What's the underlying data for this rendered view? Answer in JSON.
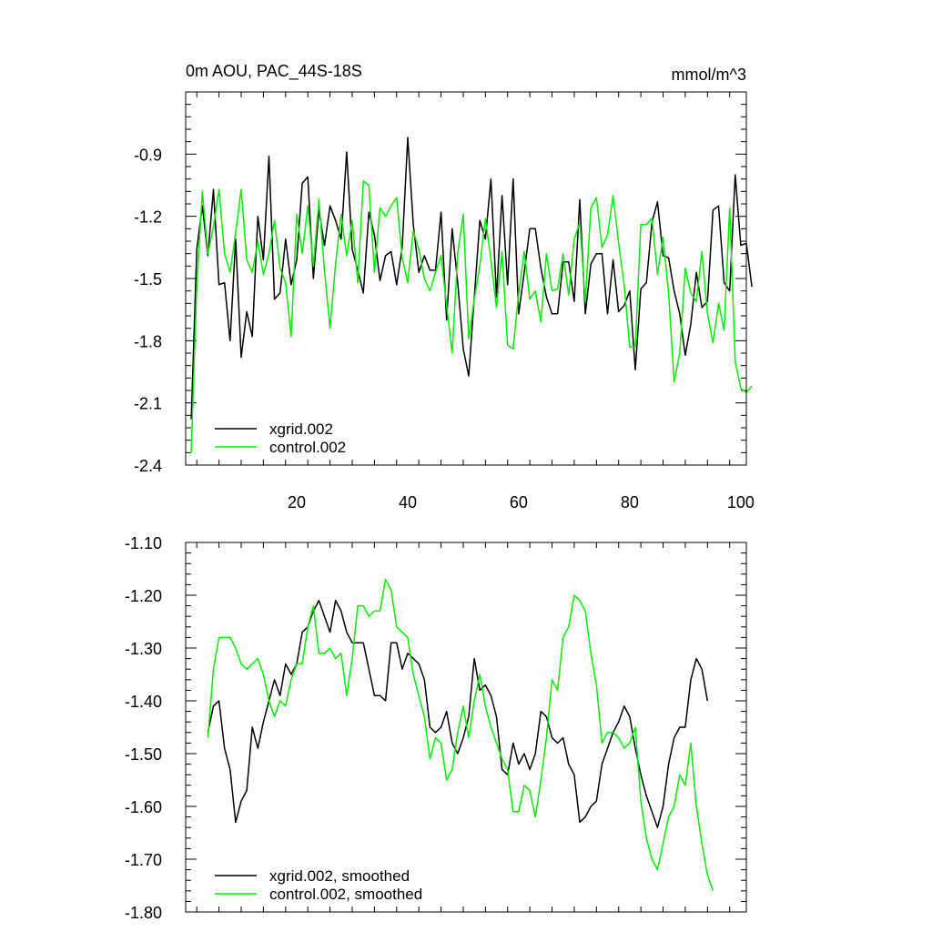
{
  "colors": {
    "series_a": "#000000",
    "series_b": "#00ee00",
    "axis": "#000000"
  },
  "chart_data": [
    {
      "type": "line",
      "title": "0m AOU, PAC_44S-18S",
      "units": "mmol/m^3",
      "xlabel": "",
      "ylabel": "",
      "xlim": [
        0,
        101
      ],
      "ylim": [
        -2.4,
        -0.6
      ],
      "x_ticks": [
        20,
        40,
        60,
        80,
        100
      ],
      "y_ticks": [
        -2.4,
        -2.1,
        -1.8,
        -1.5,
        -1.2,
        -0.9
      ],
      "y_tick_labels": [
        "-2.4",
        "-2.1",
        "-1.8",
        "-1.5",
        "-1.2",
        "-0.9"
      ],
      "legend_position": "bottom-left",
      "x_start": 1,
      "series": [
        {
          "name": "xgrid.002",
          "color": "#000000",
          "values": [
            -2.18,
            -1.36,
            -1.15,
            -1.39,
            -1.07,
            -1.53,
            -1.52,
            -1.8,
            -1.31,
            -1.88,
            -1.66,
            -1.78,
            -1.2,
            -1.41,
            -0.91,
            -1.6,
            -1.57,
            -1.31,
            -1.53,
            -1.41,
            -1.04,
            -1.01,
            -1.5,
            -1.17,
            -1.34,
            -1.15,
            -1.22,
            -1.31,
            -0.89,
            -1.36,
            -1.46,
            -1.57,
            -1.18,
            -1.29,
            -1.51,
            -1.39,
            -1.37,
            -1.53,
            -1.35,
            -0.82,
            -1.24,
            -1.47,
            -1.39,
            -1.46,
            -1.46,
            -1.18,
            -1.7,
            -1.26,
            -1.52,
            -1.84,
            -1.97,
            -1.59,
            -1.22,
            -1.31,
            -1.02,
            -1.59,
            -1.1,
            -1.53,
            -1.02,
            -1.67,
            -1.47,
            -1.26,
            -1.26,
            -1.45,
            -1.59,
            -1.67,
            -1.67,
            -1.42,
            -1.42,
            -1.61,
            -1.12,
            -1.67,
            -1.43,
            -1.38,
            -1.38,
            -1.67,
            -1.41,
            -1.66,
            -1.63,
            -1.56,
            -1.94,
            -1.55,
            -1.52,
            -1.23,
            -1.13,
            -1.39,
            -1.4,
            -1.56,
            -1.67,
            -1.87,
            -1.72,
            -1.47,
            -1.64,
            -1.61,
            -1.17,
            -1.15,
            -1.52,
            -1.56,
            -1.0,
            -1.34,
            -1.33,
            -1.54
          ]
        },
        {
          "name": "control.002",
          "color": "#00ee00",
          "values": [
            -2.34,
            -1.54,
            -1.08,
            -1.38,
            -1.25,
            -1.07,
            -1.38,
            -1.47,
            -1.28,
            -1.07,
            -1.41,
            -1.47,
            -1.32,
            -1.48,
            -1.38,
            -1.22,
            -1.45,
            -1.52,
            -1.78,
            -1.19,
            -1.38,
            -1.15,
            -1.44,
            -1.12,
            -1.46,
            -1.74,
            -1.43,
            -1.19,
            -1.39,
            -1.22,
            -1.52,
            -1.03,
            -1.05,
            -1.47,
            -1.16,
            -1.2,
            -1.15,
            -1.11,
            -1.4,
            -1.52,
            -1.27,
            -1.36,
            -1.5,
            -1.56,
            -1.47,
            -1.39,
            -1.63,
            -1.86,
            -1.38,
            -1.19,
            -1.79,
            -1.6,
            -1.44,
            -1.21,
            -1.41,
            -1.64,
            -1.37,
            -1.82,
            -1.84,
            -1.57,
            -1.37,
            -1.6,
            -1.56,
            -1.71,
            -1.38,
            -1.56,
            -1.55,
            -1.38,
            -1.58,
            -1.31,
            -1.23,
            -1.61,
            -1.16,
            -1.11,
            -1.35,
            -1.29,
            -1.1,
            -1.33,
            -1.53,
            -1.83,
            -1.83,
            -1.24,
            -1.24,
            -1.21,
            -1.48,
            -1.3,
            -1.57,
            -2.0,
            -1.86,
            -1.45,
            -1.57,
            -1.61,
            -1.37,
            -1.67,
            -1.81,
            -1.62,
            -1.75,
            -1.16,
            -1.9,
            -2.03,
            -2.05,
            -2.02
          ]
        }
      ]
    },
    {
      "type": "line",
      "title": "",
      "xlabel": "",
      "ylabel": "",
      "xlim": [
        0,
        101
      ],
      "ylim": [
        -1.8,
        -1.1
      ],
      "x_ticks": [
        20,
        40,
        60,
        80,
        100
      ],
      "y_ticks": [
        -1.8,
        -1.7,
        -1.6,
        -1.5,
        -1.4,
        -1.3,
        -1.2,
        -1.1
      ],
      "y_tick_labels": [
        "-1.80",
        "-1.70",
        "-1.60",
        "-1.50",
        "-1.40",
        "-1.30",
        "-1.20",
        "-1.10"
      ],
      "legend_position": "bottom-left",
      "x_start": 4,
      "series": [
        {
          "name": "xgrid.002, smoothed",
          "color": "#000000",
          "values": [
            -1.46,
            -1.41,
            -1.4,
            -1.49,
            -1.53,
            -1.63,
            -1.59,
            -1.57,
            -1.45,
            -1.49,
            -1.44,
            -1.4,
            -1.36,
            -1.39,
            -1.33,
            -1.35,
            -1.33,
            -1.27,
            -1.26,
            -1.23,
            -1.21,
            -1.24,
            -1.27,
            -1.21,
            -1.23,
            -1.27,
            -1.29,
            -1.29,
            -1.29,
            -1.34,
            -1.39,
            -1.39,
            -1.4,
            -1.29,
            -1.29,
            -1.34,
            -1.31,
            -1.32,
            -1.33,
            -1.36,
            -1.45,
            -1.46,
            -1.45,
            -1.42,
            -1.48,
            -1.5,
            -1.47,
            -1.43,
            -1.32,
            -1.38,
            -1.37,
            -1.39,
            -1.43,
            -1.53,
            -1.54,
            -1.48,
            -1.52,
            -1.5,
            -1.53,
            -1.5,
            -1.42,
            -1.43,
            -1.47,
            -1.48,
            -1.47,
            -1.52,
            -1.54,
            -1.63,
            -1.62,
            -1.6,
            -1.59,
            -1.52,
            -1.49,
            -1.46,
            -1.44,
            -1.41,
            -1.43,
            -1.49,
            -1.54,
            -1.58,
            -1.61,
            -1.64,
            -1.6,
            -1.52,
            -1.47,
            -1.45,
            -1.45,
            -1.36,
            -1.32,
            -1.34,
            -1.4
          ]
        },
        {
          "name": "control.002, smoothed",
          "color": "#00ee00",
          "values": [
            -1.47,
            -1.34,
            -1.28,
            -1.28,
            -1.28,
            -1.3,
            -1.33,
            -1.34,
            -1.33,
            -1.32,
            -1.35,
            -1.4,
            -1.43,
            -1.4,
            -1.41,
            -1.36,
            -1.33,
            -1.33,
            -1.26,
            -1.22,
            -1.31,
            -1.31,
            -1.3,
            -1.32,
            -1.31,
            -1.39,
            -1.32,
            -1.22,
            -1.22,
            -1.24,
            -1.23,
            -1.23,
            -1.17,
            -1.19,
            -1.26,
            -1.27,
            -1.28,
            -1.35,
            -1.39,
            -1.43,
            -1.51,
            -1.47,
            -1.48,
            -1.55,
            -1.53,
            -1.46,
            -1.41,
            -1.47,
            -1.4,
            -1.35,
            -1.41,
            -1.45,
            -1.48,
            -1.51,
            -1.53,
            -1.61,
            -1.61,
            -1.56,
            -1.57,
            -1.62,
            -1.55,
            -1.47,
            -1.36,
            -1.38,
            -1.28,
            -1.26,
            -1.2,
            -1.21,
            -1.23,
            -1.31,
            -1.37,
            -1.48,
            -1.46,
            -1.46,
            -1.47,
            -1.49,
            -1.48,
            -1.45,
            -1.59,
            -1.66,
            -1.7,
            -1.72,
            -1.67,
            -1.62,
            -1.6,
            -1.54,
            -1.56,
            -1.48,
            -1.6,
            -1.67,
            -1.73,
            -1.76
          ]
        }
      ]
    }
  ]
}
